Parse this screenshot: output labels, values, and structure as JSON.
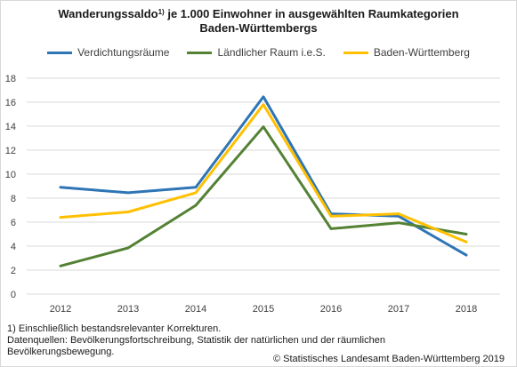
{
  "title": {
    "line1_main": "Wanderungssaldo",
    "line1_sup": "1)",
    "line1_rest": " je 1.000 Einwohner in ausgewählten Raumkategorien",
    "line2": "Baden-Württembergs"
  },
  "footnote": {
    "line1": "1) Einschließlich bestandsrelevanter Korrekturen.",
    "line2": "Datenquellen: Bevölkerungsfortschreibung, Statistik der natürlichen und der räumlichen",
    "line3": "Bevölkerungsbewegung."
  },
  "copyright": "© Statistisches Landesamt Baden-Württemberg 2019",
  "chart_data": {
    "type": "line",
    "title": "Wanderungssaldo je 1.000 Einwohner in ausgewählten Raumkategorien Baden-Württembergs",
    "xlabel": "",
    "ylabel": "",
    "x": [
      "2012",
      "2013",
      "2014",
      "2015",
      "2016",
      "2017",
      "2018"
    ],
    "ylim": [
      0,
      18
    ],
    "yticks": [
      "0",
      "2",
      "4",
      "6",
      "8",
      "10",
      "12",
      "14",
      "16",
      "18"
    ],
    "grid": true,
    "legend_position": "top",
    "series": [
      {
        "name": "Verdichtungsräume",
        "color": "#2e75b6",
        "values": [
          8.9,
          8.45,
          8.9,
          16.45,
          6.7,
          6.5,
          3.25
        ]
      },
      {
        "name": "Ländlicher Raum i.e.S.",
        "color": "#548235",
        "values": [
          2.35,
          3.85,
          7.4,
          13.95,
          5.45,
          5.95,
          5.0
        ]
      },
      {
        "name": "Baden-Württemberg",
        "color": "#ffc000",
        "values": [
          6.4,
          6.85,
          8.45,
          15.8,
          6.5,
          6.7,
          4.35
        ]
      }
    ]
  }
}
